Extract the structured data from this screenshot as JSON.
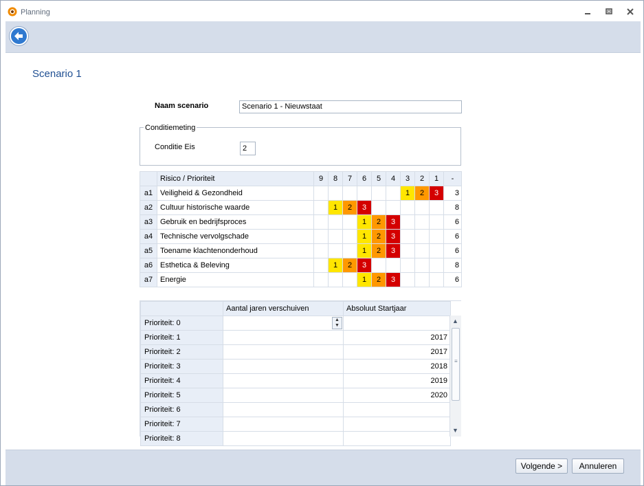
{
  "window": {
    "title": "Planning"
  },
  "page": {
    "heading": "Scenario 1"
  },
  "form": {
    "name_label": "Naam scenario",
    "name_value": "Scenario 1 - Nieuwstaat",
    "group_label": "Conditiemeting",
    "eis_label": "Conditie Eis",
    "eis_value": "2"
  },
  "risk_table": {
    "header_name": "Risico / Prioriteit",
    "columns": [
      "9",
      "8",
      "7",
      "6",
      "5",
      "4",
      "3",
      "2",
      "1",
      "-"
    ],
    "rows": [
      {
        "code": "a1",
        "name": "Veiligheid & Gezondheid",
        "levels": [
          "",
          "",
          "",
          "",
          "",
          "",
          "1",
          "2",
          "3"
        ],
        "total": "3"
      },
      {
        "code": "a2",
        "name": "Cultuur historische waarde",
        "levels": [
          "",
          "1",
          "2",
          "3",
          "",
          "",
          "",
          "",
          ""
        ],
        "total": "8"
      },
      {
        "code": "a3",
        "name": "Gebruik en bedrijfsproces",
        "levels": [
          "",
          "",
          "",
          "1",
          "2",
          "3",
          "",
          "",
          ""
        ],
        "total": "6"
      },
      {
        "code": "a4",
        "name": "Technische vervolgschade",
        "levels": [
          "",
          "",
          "",
          "1",
          "2",
          "3",
          "",
          "",
          ""
        ],
        "total": "6"
      },
      {
        "code": "a5",
        "name": "Toename klachtenonderhoud",
        "levels": [
          "",
          "",
          "",
          "1",
          "2",
          "3",
          "",
          "",
          ""
        ],
        "total": "6"
      },
      {
        "code": "a6",
        "name": "Esthetica & Beleving",
        "levels": [
          "",
          "1",
          "2",
          "3",
          "",
          "",
          "",
          "",
          ""
        ],
        "total": "8"
      },
      {
        "code": "a7",
        "name": "Energie",
        "levels": [
          "",
          "",
          "",
          "1",
          "2",
          "3",
          "",
          "",
          ""
        ],
        "total": "6"
      }
    ],
    "level_colors": {
      "1": "#ffe600",
      "2": "#ff9800",
      "3": "#d40000"
    }
  },
  "priority_table": {
    "headers": [
      "",
      "Aantal jaren verschuiven",
      "Absoluut Startjaar"
    ],
    "rows": [
      {
        "label": "Prioriteit: 0",
        "shift": "",
        "year": ""
      },
      {
        "label": "Prioriteit: 1",
        "shift": "",
        "year": "2017"
      },
      {
        "label": "Prioriteit: 2",
        "shift": "",
        "year": "2017"
      },
      {
        "label": "Prioriteit: 3",
        "shift": "",
        "year": "2018"
      },
      {
        "label": "Prioriteit: 4",
        "shift": "",
        "year": "2019"
      },
      {
        "label": "Prioriteit: 5",
        "shift": "",
        "year": "2020"
      },
      {
        "label": "Prioriteit: 6",
        "shift": "",
        "year": ""
      },
      {
        "label": "Prioriteit: 7",
        "shift": "",
        "year": ""
      },
      {
        "label": "Prioriteit: 8",
        "shift": "",
        "year": ""
      }
    ]
  },
  "buttons": {
    "next": "Volgende >",
    "cancel": "Annuleren"
  },
  "icons": {
    "app": "planning-gear-icon",
    "back": "back-arrow-icon",
    "minimize": "minimize-icon",
    "restore": "restore-icon",
    "close": "close-icon"
  }
}
